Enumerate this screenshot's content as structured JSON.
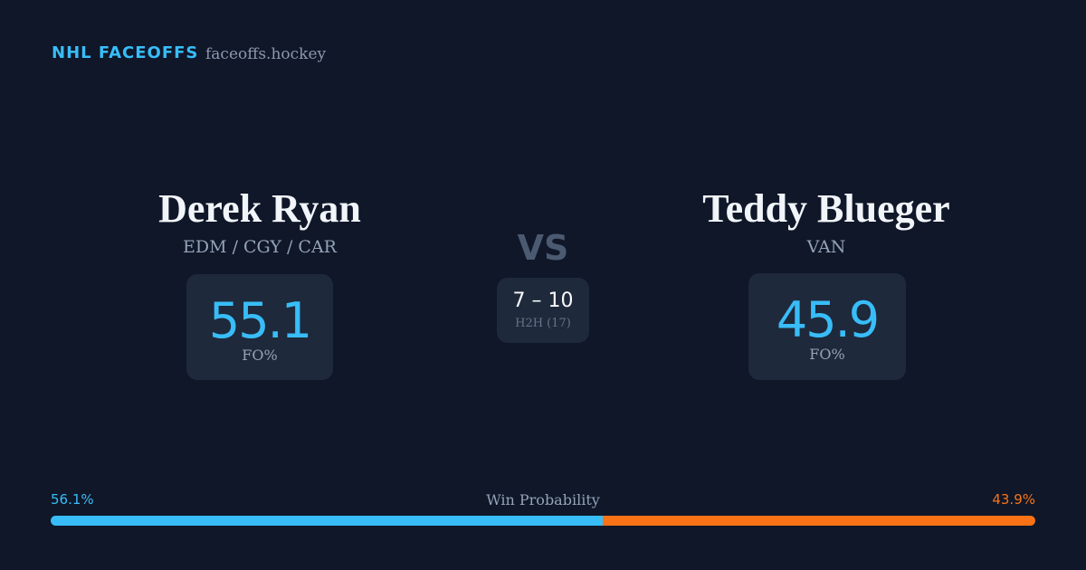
{
  "header": {
    "title": "NHL FACEOFFS",
    "site": "faceoffs.hockey"
  },
  "players": [
    {
      "name": "Derek Ryan",
      "teams": "EDM / CGY / CAR",
      "fo_pct": "55.1",
      "fo_label": "FO%"
    },
    {
      "name": "Teddy Blueger",
      "teams": "VAN",
      "fo_pct": "45.9",
      "fo_label": "FO%"
    }
  ],
  "versus": "VS",
  "head_to_head": {
    "score": "7 – 10",
    "label": "H2H (17)"
  },
  "win_probability": {
    "title": "Win Probability",
    "left": {
      "value": 56.1,
      "label": "56.1%",
      "color": "#38bdf8"
    },
    "right": {
      "value": 43.9,
      "label": "43.9%",
      "color": "#f97316"
    }
  }
}
